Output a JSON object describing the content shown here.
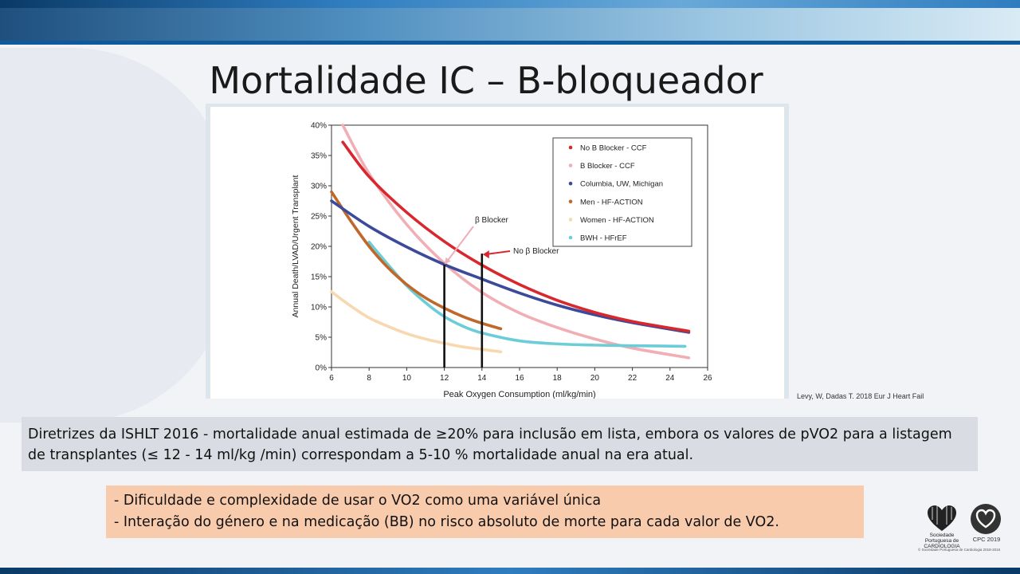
{
  "slide": {
    "title": "Mortalidade IC – B-bloqueador",
    "citation": "Levy, W, Dadas T. 2018 Eur J Heart Fail",
    "note": "Diretrizes da ISHLT 2016 -  mortalidade anual estimada de ≥20% para inclusão em lista, embora os valores de pVO2 para a listagem de transplantes (≤ 12 - 14 ml/kg /min) correspondam a 5-10 % mortalidade anual na era atual.",
    "bullets": [
      "- Dificuldade e complexidade de usar o VO2 como uma variável única",
      "- Interação do género e na medicação (BB) no risco absoluto de morte para cada valor de VO2."
    ],
    "logos": {
      "spc_text": "Sociedade Portuguesa de CARDIOLOGIA",
      "cpc_text": "CPC 2019",
      "footer": "© Sociedade Portuguesa de Cardiologia 2018-2016"
    }
  },
  "chart_data": {
    "type": "line",
    "xlabel": "Peak Oxygen Consumption (ml/kg/min)",
    "ylabel": "Annual Death/LVAD/Urgent Transplant",
    "xlim": [
      6,
      26
    ],
    "ylim": [
      0,
      40
    ],
    "x_ticks": [
      "6",
      "8",
      "10",
      "12",
      "14",
      "16",
      "18",
      "20",
      "22",
      "24",
      "26"
    ],
    "y_ticks": [
      "0%",
      "5%",
      "10%",
      "15%",
      "20%",
      "25%",
      "30%",
      "35%",
      "40%"
    ],
    "legend_position": "top-right",
    "series": [
      {
        "name": "No B Blocker - CCF",
        "color": "#d8282e",
        "x": [
          6.6,
          8,
          10,
          12,
          14,
          16,
          18,
          20,
          22,
          25
        ],
        "y": [
          37.2,
          31.5,
          25.6,
          20.8,
          16.9,
          13.7,
          11.1,
          9.1,
          7.6,
          6.0
        ]
      },
      {
        "name": "B Blocker - CCF",
        "color": "#f1aeb5",
        "x": [
          6.6,
          8,
          10,
          12,
          14,
          16,
          18,
          20,
          22,
          25
        ],
        "y": [
          40.0,
          32.0,
          23.6,
          17.2,
          12.4,
          9.0,
          6.6,
          4.7,
          3.2,
          1.6
        ]
      },
      {
        "name": "Columbia, UW, Michigan",
        "color": "#3b4a9a",
        "x": [
          6,
          8,
          10,
          12,
          14,
          16,
          18,
          20,
          22,
          25
        ],
        "y": [
          27.5,
          23.3,
          19.9,
          17.0,
          14.6,
          12.3,
          10.3,
          8.7,
          7.4,
          5.8
        ]
      },
      {
        "name": "Men - HF-ACTION",
        "color": "#c0682a",
        "x": [
          6,
          7,
          8,
          9,
          10,
          11,
          12,
          13,
          14,
          15
        ],
        "y": [
          29.0,
          24.3,
          20.0,
          16.5,
          13.7,
          11.5,
          9.8,
          8.4,
          7.3,
          6.4
        ]
      },
      {
        "name": "Women - HF-ACTION",
        "color": "#f8d8b0",
        "x": [
          6,
          7,
          8,
          9,
          10,
          11,
          12,
          13,
          14,
          15
        ],
        "y": [
          12.5,
          10.2,
          8.2,
          6.8,
          5.6,
          4.7,
          4.0,
          3.4,
          3.0,
          2.6
        ]
      },
      {
        "name": "BWH - HFrEF",
        "color": "#6ccdd8",
        "x": [
          8,
          9,
          10,
          11,
          12,
          13,
          14,
          16,
          18,
          20,
          22,
          24.8
        ],
        "y": [
          20.7,
          17.0,
          13.5,
          10.7,
          8.4,
          6.8,
          5.7,
          4.4,
          3.9,
          3.7,
          3.6,
          3.5
        ]
      }
    ],
    "reference_lines": [
      {
        "x": 12,
        "y_top": 17.0,
        "label": "β Blocker"
      },
      {
        "x": 14,
        "y_top": 18.8,
        "label": "No β Blocker"
      }
    ]
  }
}
